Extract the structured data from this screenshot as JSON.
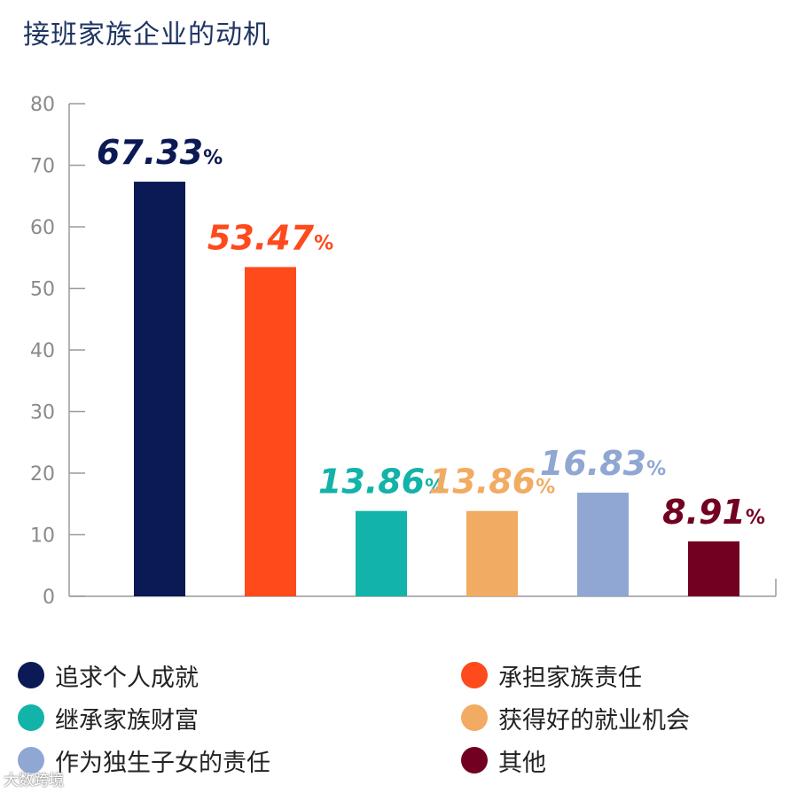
{
  "title": "接班家族企业的动机",
  "watermark": "大数跨境",
  "chart_data": {
    "type": "bar",
    "categories": [
      "追求个人成就",
      "承担家族责任",
      "继承家族财富",
      "获得好的就业机会",
      "作为独生子女的责任",
      "其他"
    ],
    "values": [
      67.33,
      53.47,
      13.86,
      13.86,
      16.83,
      8.91
    ],
    "value_labels": [
      "67.33",
      "53.47",
      "13.86",
      "13.86",
      "16.83",
      "8.91"
    ],
    "value_suffix": "%",
    "colors": [
      "#0b1a54",
      "#ff4a1c",
      "#12b3a8",
      "#f2ab62",
      "#8fa7d2",
      "#720020"
    ],
    "ylim": [
      0,
      80
    ],
    "yticks": [
      "0",
      "10",
      "20",
      "30",
      "40",
      "50",
      "60",
      "70",
      "80"
    ],
    "ytick_values": [
      0,
      10,
      20,
      30,
      40,
      50,
      60,
      70,
      80
    ],
    "grid": false,
    "legend_position": "bottom"
  }
}
